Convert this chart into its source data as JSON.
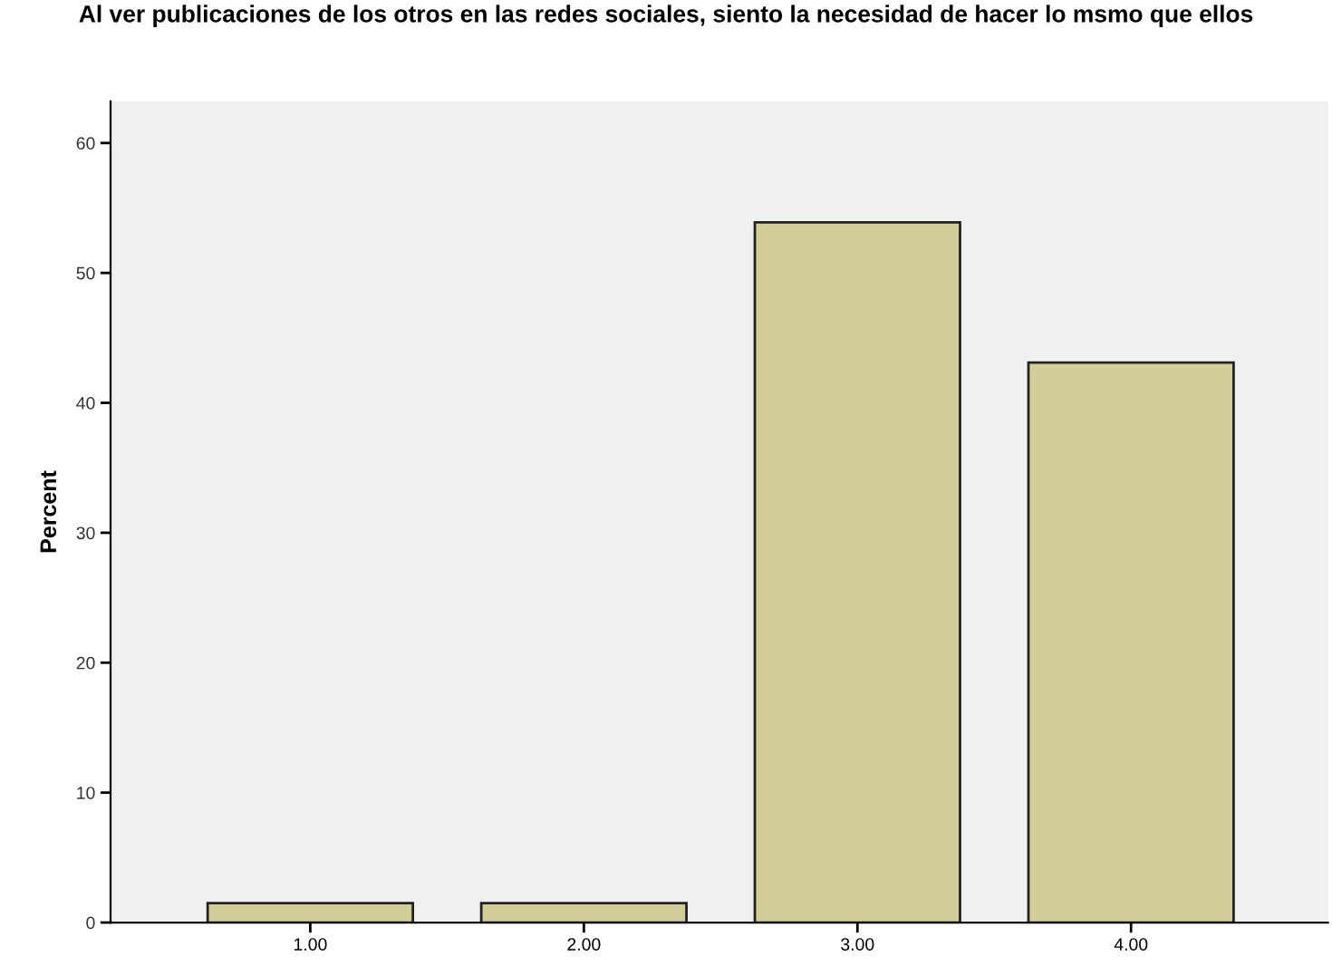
{
  "chart_data": {
    "type": "bar",
    "title": "Al ver publicaciones de los otros en las redes sociales, siento la necesidad de hacer lo msmo que ellos",
    "ylabel": "Percent",
    "categories": [
      "1.00",
      "2.00",
      "3.00",
      "4.00"
    ],
    "values": [
      1.5,
      1.5,
      53.9,
      43.1
    ],
    "color": "#d3ce98",
    "ylim": [
      0,
      63.2
    ],
    "yticks": [
      0,
      10,
      20,
      30,
      40,
      50,
      60
    ],
    "grid": false,
    "legend": false
  }
}
